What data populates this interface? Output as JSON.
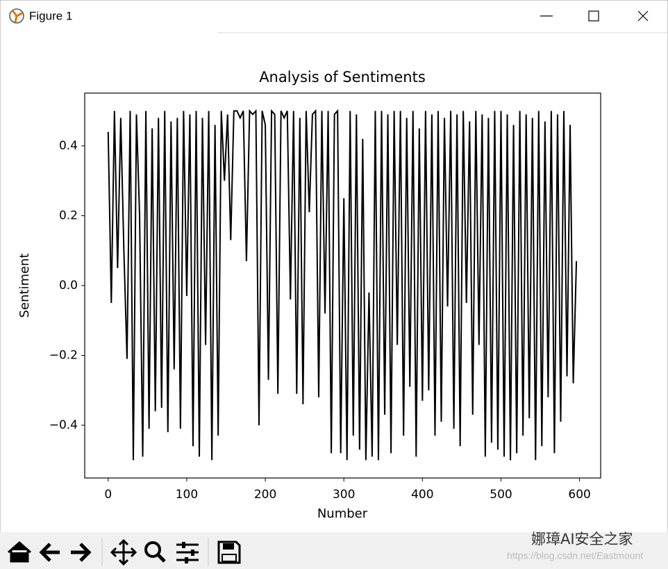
{
  "window": {
    "title": "Figure 1"
  },
  "watermark": {
    "name": "娜璋AI安全之家",
    "url": "https://blog.csdn.net/Eastmount"
  },
  "chart_data": {
    "type": "line",
    "title": "Analysis of Sentiments",
    "xlabel": "Number",
    "ylabel": "Sentiment",
    "x": [
      0,
      4,
      8,
      12,
      16,
      20,
      24,
      28,
      32,
      36,
      40,
      44,
      48,
      52,
      56,
      60,
      64,
      68,
      72,
      76,
      80,
      84,
      88,
      92,
      96,
      100,
      104,
      108,
      112,
      116,
      120,
      124,
      128,
      132,
      136,
      140,
      144,
      148,
      152,
      156,
      160,
      164,
      168,
      172,
      176,
      180,
      184,
      188,
      192,
      196,
      200,
      204,
      208,
      212,
      216,
      220,
      224,
      228,
      232,
      236,
      240,
      244,
      248,
      252,
      256,
      260,
      264,
      268,
      272,
      276,
      280,
      284,
      288,
      292,
      296,
      300,
      304,
      308,
      312,
      316,
      320,
      324,
      328,
      332,
      336,
      340,
      344,
      348,
      352,
      356,
      360,
      364,
      368,
      372,
      376,
      380,
      384,
      388,
      392,
      396,
      400,
      404,
      408,
      412,
      416,
      420,
      424,
      428,
      432,
      436,
      440,
      444,
      448,
      452,
      456,
      460,
      464,
      468,
      472,
      476,
      480,
      484,
      488,
      492,
      496,
      500,
      504,
      508,
      512,
      516,
      520,
      524,
      528,
      532,
      536,
      540,
      544,
      548,
      552,
      556,
      560,
      564,
      568,
      572,
      576,
      580,
      584,
      588,
      592,
      596
    ],
    "series": [
      {
        "color": "#000000",
        "values": [
          0.44,
          -0.05,
          0.5,
          0.05,
          0.48,
          0.1,
          -0.21,
          0.5,
          -0.5,
          0.49,
          0.2,
          -0.49,
          0.5,
          -0.41,
          0.45,
          -0.36,
          0.48,
          -0.35,
          0.5,
          -0.42,
          0.47,
          -0.24,
          0.48,
          -0.41,
          0.5,
          -0.03,
          0.49,
          -0.46,
          0.5,
          -0.49,
          0.48,
          -0.17,
          0.5,
          -0.5,
          0.46,
          -0.43,
          0.5,
          0.3,
          0.49,
          0.13,
          0.5,
          0.5,
          0.48,
          0.5,
          0.07,
          0.5,
          0.49,
          0.5,
          -0.4,
          0.5,
          0.46,
          -0.27,
          0.5,
          0.49,
          -0.31,
          0.5,
          0.48,
          0.5,
          -0.04,
          0.5,
          -0.31,
          0.48,
          -0.34,
          0.5,
          0.21,
          0.49,
          0.5,
          -0.32,
          0.5,
          -0.08,
          0.5,
          -0.48,
          0.49,
          0.5,
          -0.48,
          0.25,
          -0.5,
          0.5,
          -0.43,
          0.49,
          -0.47,
          0.42,
          -0.5,
          -0.02,
          -0.49,
          0.5,
          -0.5,
          0.5,
          -0.37,
          0.49,
          -0.48,
          0.5,
          -0.17,
          0.5,
          -0.43,
          0.48,
          -0.29,
          0.5,
          -0.49,
          0.45,
          -0.33,
          0.5,
          -0.3,
          0.49,
          -0.43,
          0.5,
          -0.39,
          0.48,
          -0.06,
          0.5,
          -0.41,
          0.49,
          -0.46,
          0.5,
          -0.05,
          0.47,
          -0.37,
          0.5,
          -0.17,
          0.49,
          -0.49,
          0.48,
          -0.45,
          0.5,
          -0.47,
          0.5,
          -0.49,
          0.49,
          -0.5,
          0.46,
          -0.48,
          0.5,
          -0.43,
          0.49,
          -0.38,
          0.48,
          -0.5,
          0.5,
          -0.46,
          0.47,
          -0.32,
          0.5,
          -0.48,
          0.49,
          -0.39,
          0.5,
          -0.26,
          0.46,
          -0.28,
          0.07
        ]
      }
    ],
    "xlim": [
      -29.85,
      626.85
    ],
    "ylim": [
      -0.551,
      0.551
    ],
    "xticks": [
      0,
      100,
      200,
      300,
      400,
      500,
      600
    ],
    "yticks": [
      {
        "value": -0.4,
        "label": "−0.4"
      },
      {
        "value": -0.2,
        "label": "−0.2"
      },
      {
        "value": 0,
        "label": "0.0"
      },
      0.2,
      0.4
    ]
  }
}
